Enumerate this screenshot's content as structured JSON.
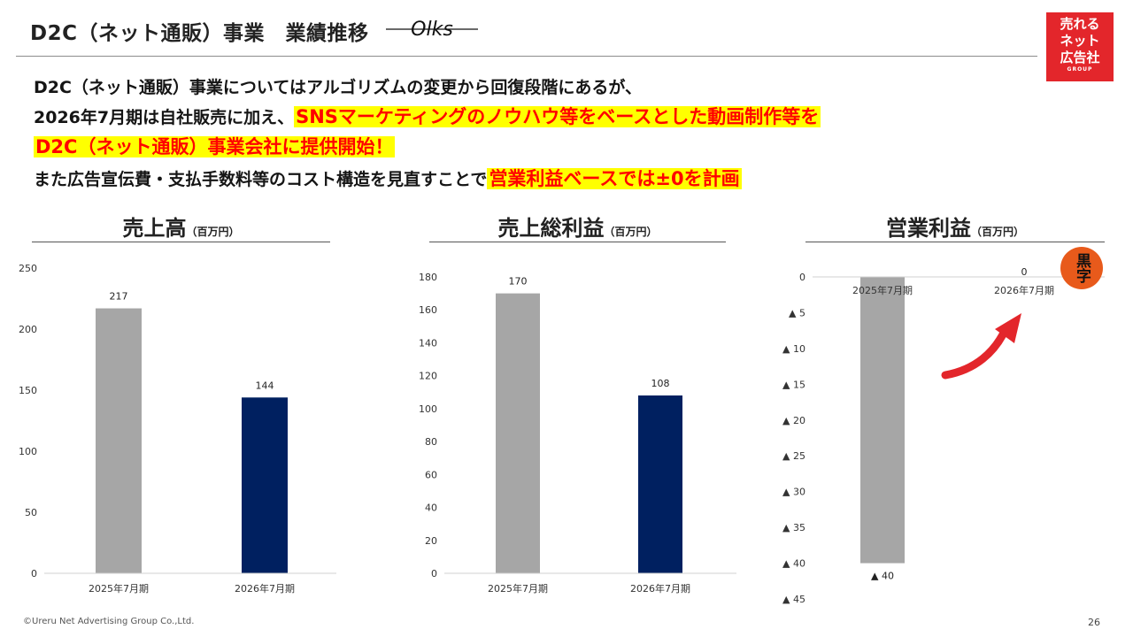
{
  "header": {
    "title": "D2C（ネット通販）事業　業績推移",
    "logo_text": "Olks",
    "brand_badge": [
      "売れる",
      "ネット",
      "広告社",
      "GROUP"
    ]
  },
  "summary": {
    "line1": "D2C（ネット通販）事業についてはアルゴリズムの変更から回復段階にあるが、",
    "line2_prefix": "2026年7月期は自社販売に加え、",
    "line2_highlight": "SNSマーケティングのノウハウ等をベースとした動画制作等を",
    "line3_highlight": "D2C（ネット通販）事業会社に提供開始！",
    "line4_prefix": "また広告宣伝費・支払手数料等のコスト構造を見直すことで",
    "line4_highlight": "営業利益ベースでは±0を計画"
  },
  "sections": [
    {
      "title": "売上高",
      "unit": "（百万円）"
    },
    {
      "title": "売上総利益",
      "unit": "（百万円）"
    },
    {
      "title": "営業利益",
      "unit": "（百万円）"
    }
  ],
  "colors": {
    "bar_2025": "#a6a6a6",
    "bar_2026": "#002060",
    "highlight_bg": "#ffff00",
    "highlight_text": "#ff0000",
    "brand_red": "#e3262b",
    "arrow_red": "#e3262b"
  },
  "chart_data": [
    {
      "type": "bar",
      "title": "売上高",
      "unit": "百万円",
      "categories": [
        "2025年7月期",
        "2026年7月期"
      ],
      "values": [
        217,
        144
      ],
      "value_labels": [
        "217",
        "144"
      ],
      "ylim": [
        0,
        250
      ],
      "yticks": [
        0,
        50,
        100,
        150,
        200,
        250
      ],
      "ytick_labels": [
        "0",
        "50",
        "100",
        "150",
        "200",
        "250"
      ]
    },
    {
      "type": "bar",
      "title": "売上総利益",
      "unit": "百万円",
      "categories": [
        "2025年7月期",
        "2026年7月期"
      ],
      "values": [
        170,
        108
      ],
      "value_labels": [
        "170",
        "108"
      ],
      "ylim": [
        0,
        180
      ],
      "yticks": [
        0,
        20,
        40,
        60,
        80,
        100,
        120,
        140,
        160,
        180
      ],
      "ytick_labels": [
        "0",
        "20",
        "40",
        "60",
        "80",
        "100",
        "120",
        "140",
        "160",
        "180"
      ]
    },
    {
      "type": "bar",
      "title": "営業利益",
      "unit": "百万円",
      "categories": [
        "2025年7月期",
        "2026年7月期"
      ],
      "values": [
        -40,
        0
      ],
      "value_labels": [
        "▲ 40",
        "0"
      ],
      "ylim": [
        -45,
        0
      ],
      "yticks": [
        0,
        -5,
        -10,
        -15,
        -20,
        -25,
        -30,
        -35,
        -40,
        -45
      ],
      "ytick_labels": [
        "0",
        "▲ 5",
        "▲ 10",
        "▲ 15",
        "▲ 20",
        "▲ 25",
        "▲ 30",
        "▲ 35",
        "▲ 40",
        "▲ 45"
      ]
    }
  ],
  "stamp_text": "黒字",
  "footer": {
    "copyright": "©Ureru Net Advertising Group Co.,Ltd.",
    "page_number": "26"
  }
}
